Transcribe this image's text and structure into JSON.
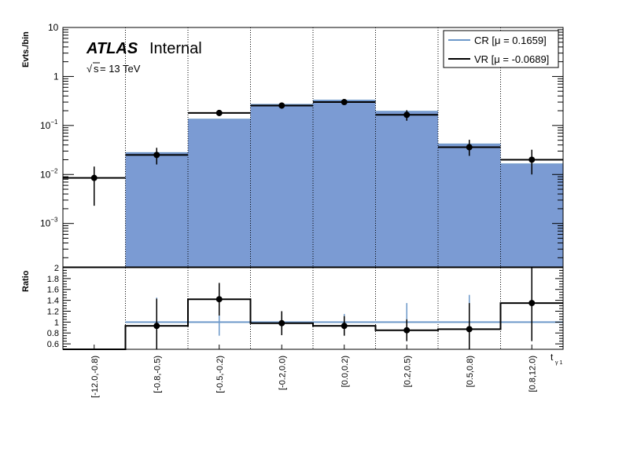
{
  "chart_data": {
    "type": "bar",
    "style": "stacked histogram with data points, log scale upper panel and ratio lower panel",
    "categories": [
      "[-12.0,-0.8)",
      "[-0.8,-0.5)",
      "[-0.5,-0.2)",
      "[-0.2,0.0)",
      "[0.0,0.2)",
      "[0.2,0.5)",
      "[0.5,0.8)",
      "[0.8,12.0)"
    ],
    "xlabel": "t",
    "xlabel_sub": "γ 1",
    "ylabel": "Evts./bin",
    "ratio_ylabel": "Ratio",
    "y_scale": "log",
    "ylim": [
      0.00013,
      10
    ],
    "y_ticks": [
      {
        "value": 10,
        "base": "10",
        "exp": ""
      },
      {
        "value": 1,
        "base": "1",
        "exp": ""
      },
      {
        "value": 0.1,
        "base": "10",
        "exp": "−1"
      },
      {
        "value": 0.01,
        "base": "10",
        "exp": "−2"
      },
      {
        "value": 0.001,
        "base": "10",
        "exp": "−3"
      }
    ],
    "ratio_ylim": [
      0.5,
      2.0
    ],
    "ratio_y_ticks": [
      "0.6",
      "0.8",
      "1",
      "1.2",
      "1.4",
      "1.6",
      "1.8",
      "2"
    ],
    "grid": "vertical dotted lines at bin edges",
    "legend_placement": "top-right",
    "series": [
      {
        "name": "CR [μ = 0.1659]",
        "kind": "filled histogram",
        "color": "#7b9bd3",
        "line_color": "#6c98c9",
        "values": [
          0.0,
          0.028,
          0.135,
          0.27,
          0.33,
          0.195,
          0.042,
          0.0165
        ]
      },
      {
        "name": "VR [μ = -0.0689]",
        "kind": "points with error bars",
        "color": "#000000",
        "values": [
          0.0085,
          0.025,
          0.18,
          0.255,
          0.3,
          0.165,
          0.036,
          0.02
        ],
        "err_low": [
          0.0062,
          0.009,
          0.025,
          0.035,
          0.03,
          0.04,
          0.012,
          0.01
        ],
        "err_high": [
          0.006,
          0.01,
          0.025,
          0.04,
          0.03,
          0.04,
          0.015,
          0.012
        ]
      }
    ],
    "ratio": {
      "values": [
        0.0,
        0.93,
        1.42,
        0.98,
        0.93,
        0.85,
        0.87,
        1.35
      ],
      "err": [
        0.0,
        0.5,
        0.3,
        0.22,
        0.18,
        0.2,
        0.48,
        0.7
      ],
      "reference_err": [
        0.0,
        0.45,
        0.25,
        0.16,
        0.15,
        0.35,
        0.5,
        0.0
      ],
      "reference_line": 1.0
    },
    "annotations": {
      "atlas": "ATLAS",
      "internal": "Internal",
      "sqrt_s_symbol": "s",
      "energy": " = 13 TeV"
    }
  }
}
